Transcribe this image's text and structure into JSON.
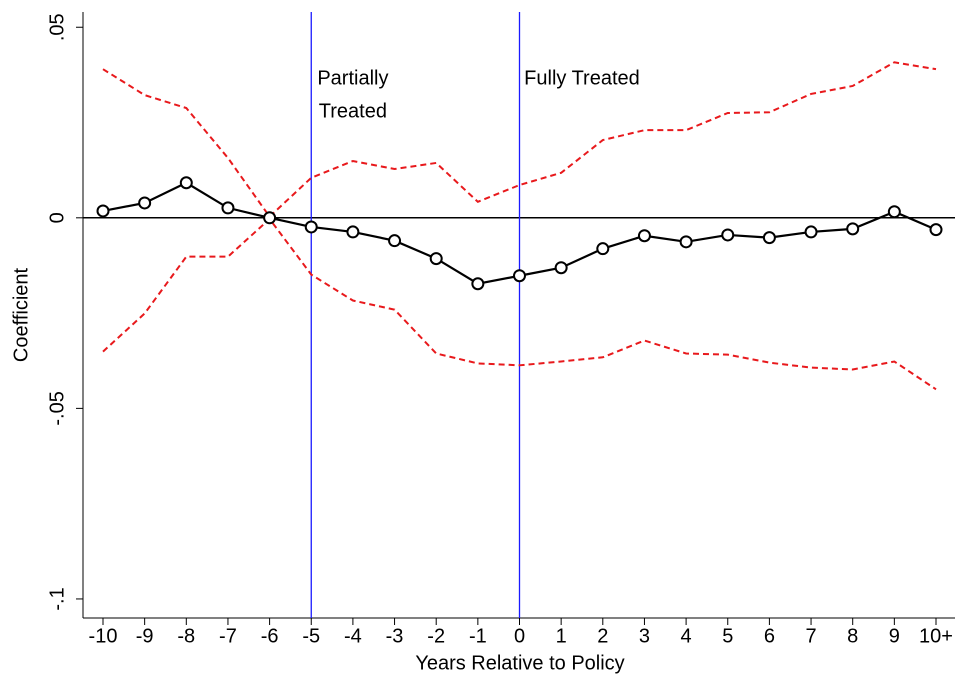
{
  "chart_data": {
    "type": "line",
    "x_label": "Years Relative to Policy",
    "y_label": "Coefficient",
    "categories": [
      "-10",
      "-9",
      "-8",
      "-7",
      "-6",
      "-5",
      "-4",
      "-3",
      "-2",
      "-1",
      "0",
      "1",
      "2",
      "3",
      "4",
      "5",
      "6",
      "7",
      "8",
      "9",
      "10+"
    ],
    "series": [
      {
        "role": "estimate",
        "color": "#000000",
        "marker": "circle",
        "dash": false,
        "values": [
          0.0018,
          0.0039,
          0.0092,
          0.0026,
          0,
          -0.0024,
          -0.0037,
          -0.006,
          -0.0107,
          -0.0173,
          -0.0152,
          -0.0131,
          -0.0081,
          -0.0047,
          -0.0063,
          -0.0045,
          -0.0052,
          -0.0037,
          -0.0029,
          0.0016,
          -0.0031
        ]
      },
      {
        "role": "upper",
        "color": "#e8191c",
        "marker": "none",
        "dash": true,
        "values": [
          0.039,
          0.0322,
          0.0288,
          0.0157,
          0.0003,
          0.0105,
          0.0149,
          0.0128,
          0.0144,
          0.0042,
          0.0086,
          0.0118,
          0.0204,
          0.023,
          0.023,
          0.0275,
          0.0277,
          0.0325,
          0.0346,
          0.0408,
          0.039
        ]
      },
      {
        "role": "lower",
        "color": "#e8191c",
        "marker": "none",
        "dash": true,
        "values": [
          -0.0351,
          -0.0251,
          -0.0102,
          -0.0102,
          -0.0003,
          -0.0149,
          -0.0217,
          -0.0241,
          -0.0356,
          -0.0382,
          -0.0387,
          -0.0377,
          -0.0366,
          -0.0322,
          -0.0356,
          -0.0359,
          -0.038,
          -0.0393,
          -0.0398,
          -0.0377,
          -0.045
        ]
      }
    ],
    "ylim": [
      -0.105,
      0.054
    ],
    "yticks": [
      {
        "value": 0.05,
        "label": ".05"
      },
      0,
      {
        "value": -0.05,
        "label": "-.05"
      },
      {
        "value": -0.1,
        "label": "-.1"
      }
    ],
    "hline": 0,
    "vlines": [
      "-5",
      "0"
    ],
    "vline_color": "#1a1aff",
    "annotations": [
      {
        "lines": [
          "Partially",
          "Treated"
        ],
        "at": "-4"
      },
      {
        "lines": [
          "Fully Treated"
        ],
        "at": "1.5"
      }
    ]
  }
}
